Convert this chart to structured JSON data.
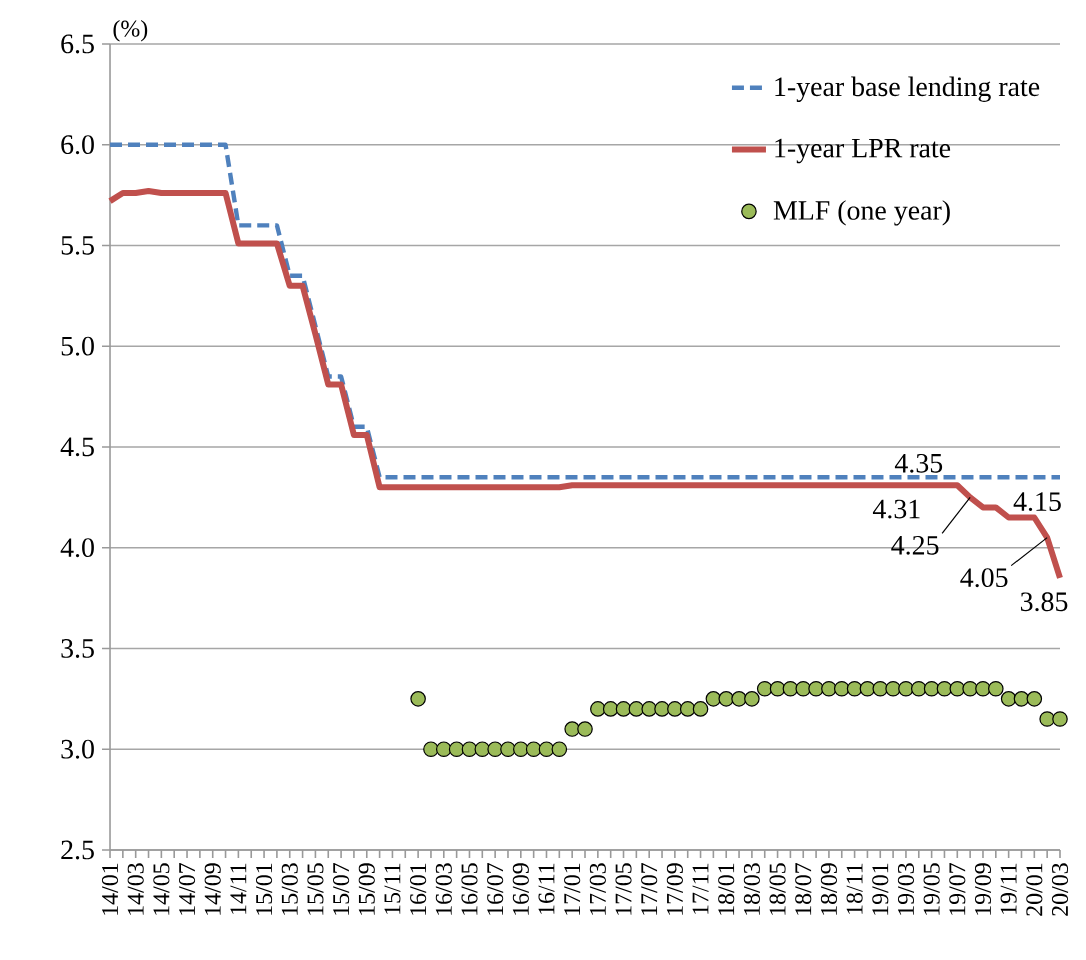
{
  "chart_data": {
    "type": "line",
    "ylabel": "(%)",
    "categories": [
      "14/01",
      null,
      "14/03",
      null,
      "14/05",
      null,
      "14/07",
      null,
      "14/09",
      null,
      "14/11",
      null,
      "15/01",
      null,
      "15/03",
      null,
      "15/05",
      null,
      "15/07",
      null,
      "15/09",
      null,
      "15/11",
      null,
      "16/01",
      null,
      "16/03",
      null,
      "16/05",
      null,
      "16/07",
      null,
      "16/09",
      null,
      "16/11",
      null,
      "17/01",
      null,
      "17/03",
      null,
      "17/05",
      null,
      "17/07",
      null,
      "17/09",
      null,
      "17/11",
      null,
      "18/01",
      null,
      "18/03",
      null,
      "18/05",
      null,
      "18/07",
      null,
      "18/09",
      null,
      "18/11",
      null,
      "19/01",
      null,
      "19/03",
      null,
      "19/05",
      null,
      "19/07",
      null,
      "19/09",
      null,
      "19/11",
      null,
      "20/01",
      null,
      "20/03"
    ],
    "ylim": [
      2.5,
      6.5
    ],
    "yticks": [
      2.5,
      {
        "value": 3,
        "label": "3.0"
      },
      3.5,
      {
        "value": 4,
        "label": "4.0"
      },
      4.5,
      {
        "value": 5,
        "label": "5.0"
      },
      5.5,
      {
        "value": 6,
        "label": "6.0"
      },
      6.5
    ],
    "grid": "y",
    "legend": "top right",
    "series": [
      {
        "name": "1-year base lending rate",
        "color": "#4f81bd",
        "line_style": "dashed",
        "marker": "none",
        "values": [
          6.0,
          6.0,
          6.0,
          6.0,
          6.0,
          6.0,
          6.0,
          6.0,
          6.0,
          6.0,
          5.6,
          5.6,
          5.6,
          5.6,
          5.35,
          5.35,
          5.1,
          4.85,
          4.85,
          4.6,
          4.6,
          4.35,
          4.35,
          4.35,
          4.35,
          4.35,
          4.35,
          4.35,
          4.35,
          4.35,
          4.35,
          4.35,
          4.35,
          4.35,
          4.35,
          4.35,
          4.35,
          4.35,
          4.35,
          4.35,
          4.35,
          4.35,
          4.35,
          4.35,
          4.35,
          4.35,
          4.35,
          4.35,
          4.35,
          4.35,
          4.35,
          4.35,
          4.35,
          4.35,
          4.35,
          4.35,
          4.35,
          4.35,
          4.35,
          4.35,
          4.35,
          4.35,
          4.35,
          4.35,
          4.35,
          4.35,
          4.35,
          4.35,
          4.35,
          4.35,
          4.35,
          4.35,
          4.35,
          4.35,
          4.35
        ],
        "value_labels": [
          null,
          null,
          null,
          null,
          null,
          null,
          null,
          null,
          null,
          null,
          null,
          null,
          null,
          null,
          null,
          null,
          null,
          null,
          null,
          null,
          null,
          null,
          null,
          null,
          null,
          null,
          null,
          null,
          null,
          null,
          null,
          null,
          null,
          null,
          null,
          null,
          null,
          null,
          null,
          null,
          null,
          null,
          null,
          null,
          null,
          null,
          null,
          null,
          null,
          null,
          null,
          null,
          null,
          null,
          null,
          null,
          null,
          null,
          null,
          null,
          null,
          null,
          null,
          "4.35",
          null,
          null,
          null,
          null,
          null,
          null,
          null,
          null,
          null,
          null,
          null
        ]
      },
      {
        "name": "1-year LPR rate",
        "color": "#c0504d",
        "line_style": "solid",
        "marker": "none",
        "values": [
          5.72,
          5.76,
          5.76,
          5.77,
          5.76,
          5.76,
          5.76,
          5.76,
          5.76,
          5.76,
          5.51,
          5.51,
          5.51,
          5.51,
          5.3,
          5.3,
          5.06,
          4.81,
          4.81,
          4.56,
          4.56,
          4.3,
          4.3,
          4.3,
          4.3,
          4.3,
          4.3,
          4.3,
          4.3,
          4.3,
          4.3,
          4.3,
          4.3,
          4.3,
          4.3,
          4.3,
          4.31,
          4.31,
          4.31,
          4.31,
          4.31,
          4.31,
          4.31,
          4.31,
          4.31,
          4.31,
          4.31,
          4.31,
          4.31,
          4.31,
          4.31,
          4.31,
          4.31,
          4.31,
          4.31,
          4.31,
          4.31,
          4.31,
          4.31,
          4.31,
          4.31,
          4.31,
          4.31,
          4.31,
          4.31,
          4.31,
          4.31,
          4.25,
          4.2,
          4.2,
          4.15,
          4.15,
          4.15,
          4.05,
          3.85
        ],
        "value_labels": [
          null,
          null,
          null,
          null,
          null,
          null,
          null,
          null,
          null,
          null,
          null,
          null,
          null,
          null,
          null,
          null,
          null,
          null,
          null,
          null,
          null,
          null,
          null,
          null,
          null,
          null,
          null,
          null,
          null,
          null,
          null,
          null,
          null,
          null,
          null,
          null,
          null,
          null,
          null,
          null,
          null,
          null,
          null,
          null,
          null,
          null,
          null,
          null,
          null,
          null,
          null,
          null,
          null,
          null,
          null,
          null,
          null,
          null,
          null,
          null,
          null,
          null,
          null,
          null,
          "4.31",
          null,
          null,
          "4.25",
          null,
          null,
          null,
          "4.15",
          null,
          "4.05",
          "3.85"
        ]
      },
      {
        "name": "MLF (one year)",
        "type": "scatter",
        "color": "#9bbb59",
        "marker": "circle",
        "values": [
          null,
          null,
          null,
          null,
          null,
          null,
          null,
          null,
          null,
          null,
          null,
          null,
          null,
          null,
          null,
          null,
          null,
          null,
          null,
          null,
          null,
          null,
          null,
          null,
          3.25,
          3.0,
          3.0,
          3.0,
          3.0,
          3.0,
          3.0,
          3.0,
          3.0,
          3.0,
          3.0,
          3.0,
          3.1,
          3.1,
          3.2,
          3.2,
          3.2,
          3.2,
          3.2,
          3.2,
          3.2,
          3.2,
          3.2,
          3.25,
          3.25,
          3.25,
          3.25,
          3.3,
          3.3,
          3.3,
          3.3,
          3.3,
          3.3,
          3.3,
          3.3,
          3.3,
          3.3,
          3.3,
          3.3,
          3.3,
          3.3,
          3.3,
          3.3,
          3.3,
          3.3,
          3.3,
          3.25,
          3.25,
          3.25,
          3.15,
          3.15
        ]
      }
    ]
  }
}
